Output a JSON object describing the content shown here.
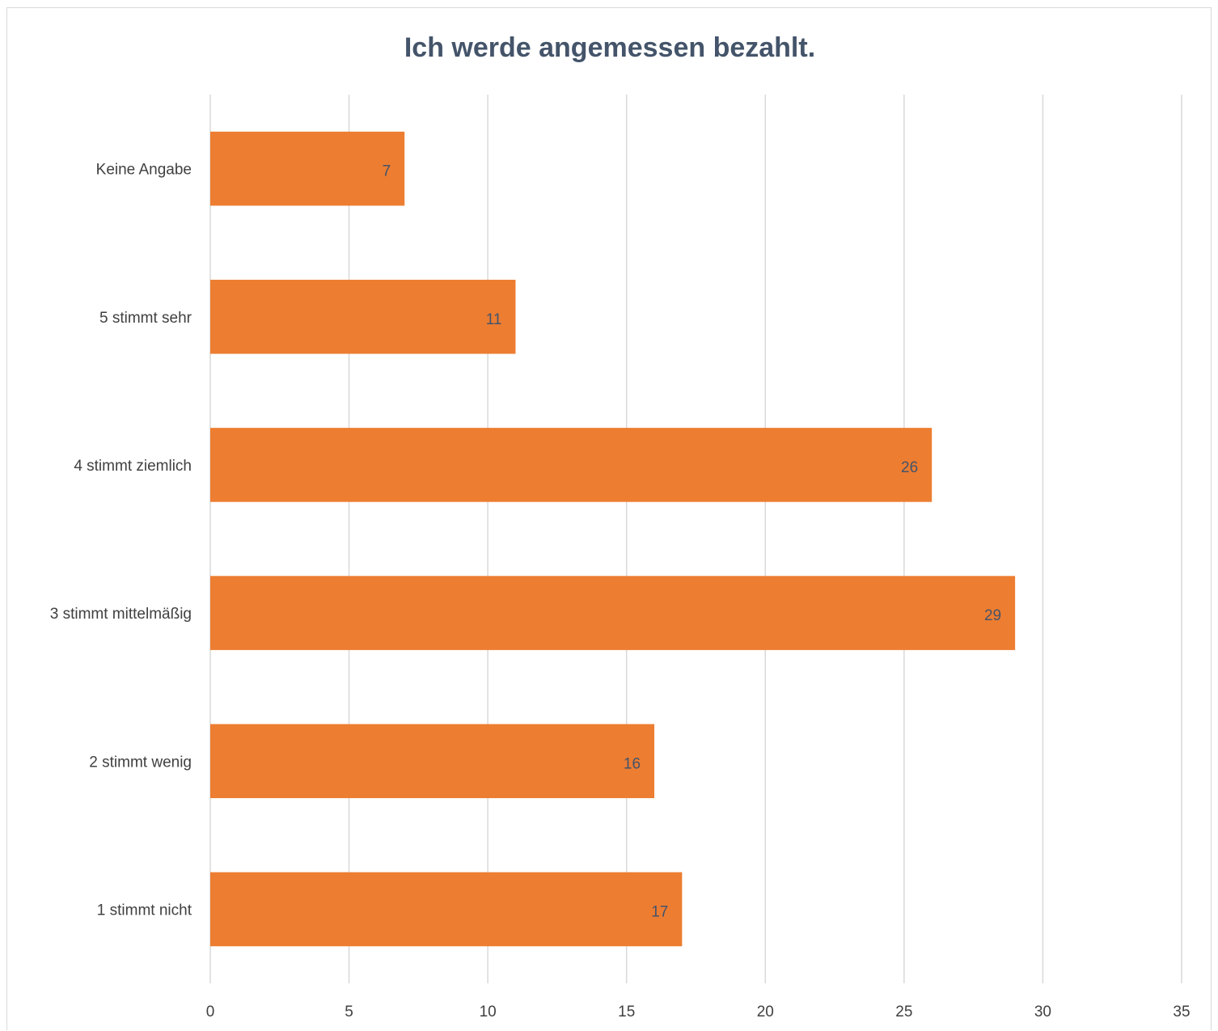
{
  "chart_data": {
    "type": "bar",
    "orientation": "horizontal",
    "title": "Ich werde angemessen bezahlt.",
    "categories": [
      "Keine Angabe",
      "5 stimmt sehr",
      "4 stimmt ziemlich",
      "3 stimmt mittelmäßig",
      "2 stimmt wenig",
      "1 stimmt nicht"
    ],
    "values": [
      7,
      11,
      26,
      29,
      16,
      17
    ],
    "data_labels": [
      "7",
      "11",
      "26",
      "29",
      "16",
      "17"
    ],
    "xlim": [
      0,
      35
    ],
    "x_ticks": [
      0,
      5,
      10,
      15,
      20,
      25,
      30,
      35
    ],
    "x_tick_labels": [
      "0",
      "5",
      "10",
      "15",
      "20",
      "25",
      "30",
      "35"
    ],
    "grid": true,
    "legend": "none",
    "bar_color": "#ed7d31",
    "gridline_color": "#d9d9d9",
    "title_color": "#44546a"
  }
}
